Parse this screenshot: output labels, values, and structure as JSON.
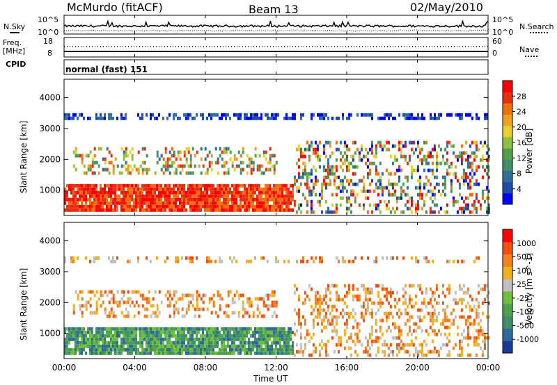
{
  "header": {
    "station": "McMurdo (fitACF)",
    "beam": "Beam 13",
    "date": "02/May/2010"
  },
  "top_panels": {
    "nsky_label": "N.Sky",
    "nsearch_label": "N.Search",
    "noise_ticks": [
      "10^5",
      "10^0"
    ],
    "noise_ticks_right": [
      "10^5",
      "10^0"
    ],
    "freq_label": "Freq.",
    "freq_unit": "[MHz]",
    "freq_ticks": [
      "18",
      "8"
    ],
    "nave_label": "Nave",
    "nave_ticks": [
      "60",
      "0"
    ],
    "cpid_label": "CPID",
    "cpid_value": "normal (fast) 151"
  },
  "chart_data": [
    {
      "type": "heatmap",
      "name": "power",
      "ylabel": "Slant Range [km]",
      "y_ticks": [
        "4000",
        "3000",
        "2000",
        "1000"
      ],
      "y_tick_values": [
        4000,
        3000,
        2000,
        1000
      ],
      "ylim": [
        180,
        4600
      ],
      "xlim": [
        "00:00",
        "24:00"
      ],
      "colorbar": {
        "label": "Power [dB]",
        "ticks": [
          "28",
          "24",
          "20",
          "16",
          "12",
          "8",
          "4"
        ],
        "colors": [
          "#0000ff",
          "#1f4aa8",
          "#2f6fa0",
          "#3f8f6a",
          "#4fa04f",
          "#8fc040",
          "#e8d030",
          "#f0a020",
          "#f07010",
          "#e83010",
          "#ff0000"
        ]
      },
      "bands": [
        {
          "t0": 0.0,
          "t1": 13.0,
          "r0": 400,
          "r1": 1200,
          "level": "high"
        },
        {
          "t0": 0.5,
          "t1": 12.0,
          "r0": 1500,
          "r1": 2400,
          "level": "medium"
        },
        {
          "t0": 13.0,
          "t1": 24.0,
          "r0": 300,
          "r1": 2600,
          "level": "mixed"
        },
        {
          "t0": 0.0,
          "t1": 24.0,
          "r0": 3380,
          "r1": 3500,
          "level": "low"
        }
      ]
    },
    {
      "type": "heatmap",
      "name": "velocity",
      "ylabel": "Slant Range [km]",
      "y_ticks": [
        "4000",
        "3000",
        "2000",
        "1000"
      ],
      "y_tick_values": [
        4000,
        3000,
        2000,
        1000
      ],
      "ylim": [
        180,
        4600
      ],
      "xlim": [
        "00:00",
        "24:00"
      ],
      "colorbar": {
        "label": "Velocity [m s^-1]",
        "ticks": [
          "1000",
          "500",
          "100",
          "25",
          "-25",
          "-100",
          "-500",
          "-1000"
        ],
        "colors": [
          "#1a3a9a",
          "#2f6a9a",
          "#3f8f6a",
          "#4fa04f",
          "#6cc03a",
          "#c0c0c0",
          "#f0b020",
          "#f08020",
          "#f05010",
          "#ff0000"
        ]
      },
      "bands": [
        {
          "t0": 0.0,
          "t1": 13.0,
          "r0": 400,
          "r1": 1200,
          "level": "green"
        },
        {
          "t0": 0.5,
          "t1": 12.0,
          "r0": 1500,
          "r1": 2400,
          "level": "orange"
        },
        {
          "t0": 13.0,
          "t1": 24.0,
          "r0": 300,
          "r1": 2600,
          "level": "orange"
        },
        {
          "t0": 0.0,
          "t1": 24.0,
          "r0": 3380,
          "r1": 3500,
          "level": "orange"
        }
      ]
    }
  ],
  "x_axis": {
    "label": "Time UT",
    "ticks": [
      "00:00",
      "04:00",
      "08:00",
      "12:00",
      "16:00",
      "20:00",
      "00:00"
    ]
  }
}
